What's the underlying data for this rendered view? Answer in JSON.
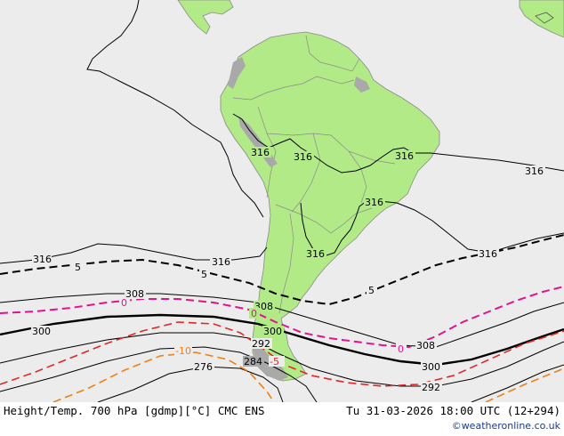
{
  "map": {
    "colors": {
      "ocean": "#ececec",
      "land": "#b3ea88",
      "land_stroke": "#8a8a8a",
      "highland": "#a9a9a9",
      "height_contour": "#000000",
      "temp_5": "#000000",
      "temp_0": "#e0148c",
      "temp_minus5": "#e02828",
      "temp_minus10": "#f07f14"
    },
    "height_labels": {
      "h316": "316",
      "h308": "308",
      "h300": "300",
      "h292": "292",
      "h284": "284",
      "h276": "276"
    },
    "temp_labels": {
      "t5": "5",
      "t0": "0",
      "tm5": "-5",
      "tm10": "-10"
    }
  },
  "footer": {
    "title": "Height/Temp. 700 hPa [gdmp][°C] CMC ENS",
    "date": "Tu 31-03-2026 18:00 UTC (12+294)",
    "credit": "©weatheronline.co.uk"
  }
}
